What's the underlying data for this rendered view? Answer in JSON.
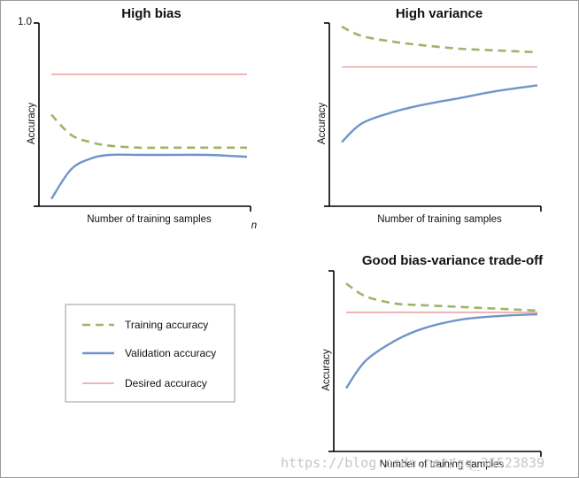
{
  "chart_data": [
    {
      "type": "line",
      "title": "High bias",
      "xlabel": "Number of training samples",
      "ylabel": "Accuracy",
      "x_tick_end_label": "n",
      "y_tick_top_label": "1.0",
      "ylim": [
        0,
        1
      ],
      "xlim": [
        0,
        1
      ],
      "series": [
        {
          "name": "Training accuracy",
          "x": [
            0,
            0.1,
            0.2,
            0.3,
            0.45,
            0.6,
            0.8,
            1.0
          ],
          "values": [
            0.5,
            0.39,
            0.35,
            0.33,
            0.32,
            0.32,
            0.32,
            0.32
          ]
        },
        {
          "name": "Validation accuracy",
          "x": [
            0,
            0.1,
            0.2,
            0.3,
            0.45,
            0.6,
            0.8,
            1.0
          ],
          "values": [
            0.04,
            0.2,
            0.26,
            0.28,
            0.28,
            0.28,
            0.28,
            0.27
          ]
        },
        {
          "name": "Desired accuracy",
          "x": [
            0,
            1.0
          ],
          "values": [
            0.72,
            0.72
          ]
        }
      ]
    },
    {
      "type": "line",
      "title": "High variance",
      "xlabel": "Number of training samples",
      "ylabel": "Accuracy",
      "ylim": [
        0,
        1
      ],
      "xlim": [
        0,
        1
      ],
      "series": [
        {
          "name": "Training accuracy",
          "x": [
            0,
            0.1,
            0.25,
            0.4,
            0.6,
            0.8,
            1.0
          ],
          "values": [
            0.98,
            0.93,
            0.9,
            0.88,
            0.86,
            0.85,
            0.84
          ]
        },
        {
          "name": "Validation accuracy",
          "x": [
            0,
            0.1,
            0.25,
            0.4,
            0.6,
            0.8,
            1.0
          ],
          "values": [
            0.35,
            0.45,
            0.51,
            0.55,
            0.59,
            0.63,
            0.66
          ]
        },
        {
          "name": "Desired accuracy",
          "x": [
            0,
            1.0
          ],
          "values": [
            0.76,
            0.76
          ]
        }
      ]
    },
    {
      "type": "line",
      "title": "Good bias-variance trade-off",
      "xlabel": "Number of training samples",
      "ylabel": "Accuracy",
      "ylim": [
        0,
        1
      ],
      "xlim": [
        0,
        1
      ],
      "series": [
        {
          "name": "Training accuracy",
          "x": [
            0,
            0.1,
            0.25,
            0.4,
            0.6,
            0.8,
            1.0
          ],
          "values": [
            0.93,
            0.86,
            0.82,
            0.81,
            0.8,
            0.79,
            0.78
          ]
        },
        {
          "name": "Validation accuracy",
          "x": [
            0,
            0.1,
            0.25,
            0.4,
            0.6,
            0.8,
            1.0
          ],
          "values": [
            0.35,
            0.5,
            0.61,
            0.68,
            0.73,
            0.75,
            0.76
          ]
        },
        {
          "name": "Desired accuracy",
          "x": [
            0,
            1.0
          ],
          "values": [
            0.77,
            0.77
          ]
        }
      ]
    }
  ],
  "legend": {
    "items": [
      {
        "label": "Training accuracy",
        "style": "dashed",
        "color": "#9bb56a"
      },
      {
        "label": "Validation accuracy",
        "style": "solid",
        "color": "#6f95c8"
      },
      {
        "label": "Desired accuracy",
        "style": "thin",
        "color": "#e58a8a"
      }
    ]
  },
  "colors": {
    "training": "#9bb56a",
    "validation": "#6f95c8",
    "desired": "#e58a8a",
    "axis": "#000000"
  },
  "watermark": "https://blog.csdn.net/qq_36523839"
}
